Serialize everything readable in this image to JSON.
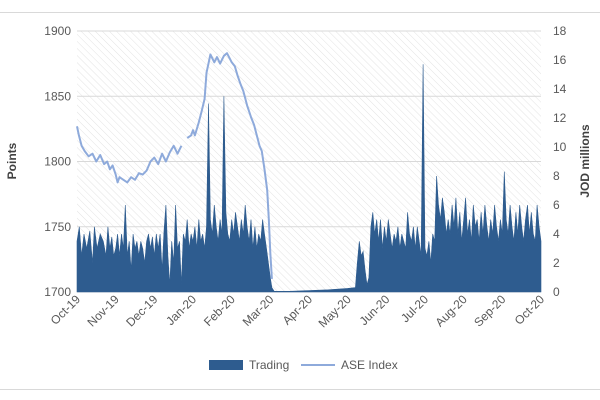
{
  "chart_data": {
    "type": "area",
    "title": "",
    "ylabel_left": "Points",
    "ylabel_right": "JOD millions",
    "left_axis": {
      "min": 1700,
      "max": 1900,
      "ticks": [
        "1700",
        "1750",
        "1800",
        "1850",
        "1900"
      ]
    },
    "right_axis": {
      "min": 0,
      "max": 18,
      "ticks": [
        "0",
        "2",
        "4",
        "6",
        "8",
        "10",
        "12",
        "14",
        "16",
        "18"
      ]
    },
    "x_axis": {
      "ticks": [
        "Oct-19",
        "Nov-19",
        "Dec-19",
        "Jan-20",
        "Feb-20",
        "Mar-20",
        "Apr-20",
        "May-20",
        "Jun-20",
        "Jul-20",
        "Aug-20",
        "Sep-20",
        "Oct-20"
      ]
    },
    "grid": "horizontal",
    "legend_position": "bottom",
    "series": [
      {
        "name": "Trading",
        "kind": "area",
        "axis": "right",
        "color": "#2e5c8f",
        "points": [
          [
            0.0,
            3.5
          ],
          [
            0.06,
            4.5
          ],
          [
            0.12,
            2.5
          ],
          [
            0.18,
            4.0
          ],
          [
            0.25,
            3.0
          ],
          [
            0.33,
            4.2
          ],
          [
            0.4,
            2.0
          ],
          [
            0.45,
            4.5
          ],
          [
            0.52,
            3.0
          ],
          [
            0.6,
            4.0
          ],
          [
            0.68,
            3.5
          ],
          [
            0.75,
            2.5
          ],
          [
            0.8,
            4.5
          ],
          [
            0.85,
            3.0
          ],
          [
            0.9,
            3.8
          ],
          [
            0.95,
            2.5
          ],
          [
            1.0,
            3.0
          ],
          [
            1.05,
            4.0
          ],
          [
            1.1,
            2.5
          ],
          [
            1.15,
            4.0
          ],
          [
            1.2,
            3.0
          ],
          [
            1.25,
            6.0
          ],
          [
            1.3,
            2.5
          ],
          [
            1.35,
            3.5
          ],
          [
            1.4,
            1.5
          ],
          [
            1.45,
            4.0
          ],
          [
            1.5,
            3.0
          ],
          [
            1.55,
            3.5
          ],
          [
            1.6,
            2.5
          ],
          [
            1.65,
            3.5
          ],
          [
            1.7,
            3.0
          ],
          [
            1.75,
            2.0
          ],
          [
            1.8,
            3.5
          ],
          [
            1.85,
            4.0
          ],
          [
            1.9,
            3.0
          ],
          [
            1.95,
            3.8
          ],
          [
            2.0,
            2.5
          ],
          [
            2.05,
            4.0
          ],
          [
            2.1,
            3.0
          ],
          [
            2.15,
            4.0
          ],
          [
            2.2,
            1.5
          ],
          [
            2.25,
            4.2
          ],
          [
            2.3,
            6.0
          ],
          [
            2.35,
            2.5
          ],
          [
            2.4,
            0.5
          ],
          [
            2.45,
            3.5
          ],
          [
            2.5,
            2.0
          ],
          [
            2.55,
            6.0
          ],
          [
            2.6,
            3.0
          ],
          [
            2.65,
            3.5
          ],
          [
            2.7,
            0.5
          ],
          [
            2.75,
            4.0
          ],
          [
            2.8,
            3.5
          ],
          [
            2.85,
            5.0
          ],
          [
            2.9,
            3.0
          ],
          [
            2.95,
            4.0
          ],
          [
            3.0,
            3.5
          ],
          [
            3.05,
            4.5
          ],
          [
            3.1,
            3.0
          ],
          [
            3.15,
            5.0
          ],
          [
            3.2,
            3.5
          ],
          [
            3.25,
            4.0
          ],
          [
            3.3,
            3.0
          ],
          [
            3.35,
            4.5
          ],
          [
            3.4,
            13.0
          ],
          [
            3.45,
            5.0
          ],
          [
            3.5,
            4.0
          ],
          [
            3.55,
            6.0
          ],
          [
            3.6,
            4.5
          ],
          [
            3.65,
            3.5
          ],
          [
            3.7,
            5.0
          ],
          [
            3.75,
            4.0
          ],
          [
            3.8,
            13.5
          ],
          [
            3.85,
            5.5
          ],
          [
            3.9,
            4.0
          ],
          [
            3.95,
            3.5
          ],
          [
            4.0,
            5.0
          ],
          [
            4.05,
            4.0
          ],
          [
            4.1,
            5.5
          ],
          [
            4.15,
            4.5
          ],
          [
            4.2,
            3.5
          ],
          [
            4.25,
            5.0
          ],
          [
            4.3,
            4.0
          ],
          [
            4.35,
            6.0
          ],
          [
            4.4,
            4.5
          ],
          [
            4.45,
            3.5
          ],
          [
            4.5,
            5.0
          ],
          [
            4.55,
            3.0
          ],
          [
            4.6,
            4.5
          ],
          [
            4.65,
            3.0
          ],
          [
            4.7,
            4.0
          ],
          [
            4.75,
            3.5
          ],
          [
            4.8,
            5.0
          ],
          [
            4.85,
            4.0
          ],
          [
            4.9,
            3.0
          ],
          [
            4.95,
            2.0
          ],
          [
            5.0,
            1.0
          ],
          [
            5.04,
            0.3
          ],
          [
            5.1,
            0.05
          ],
          [
            5.5,
            0.05
          ],
          [
            6.0,
            0.1
          ],
          [
            6.5,
            0.15
          ],
          [
            7.0,
            0.25
          ],
          [
            7.2,
            0.3
          ],
          [
            7.25,
            2.0
          ],
          [
            7.3,
            3.5
          ],
          [
            7.35,
            2.5
          ],
          [
            7.4,
            2.8
          ],
          [
            7.45,
            1.5
          ],
          [
            7.5,
            0.5
          ],
          [
            7.55,
            1.0
          ],
          [
            7.6,
            4.5
          ],
          [
            7.65,
            5.5
          ],
          [
            7.7,
            4.0
          ],
          [
            7.75,
            5.0
          ],
          [
            7.8,
            3.5
          ],
          [
            7.85,
            5.0
          ],
          [
            7.9,
            3.0
          ],
          [
            7.95,
            4.5
          ],
          [
            8.0,
            3.5
          ],
          [
            8.05,
            5.0
          ],
          [
            8.1,
            4.0
          ],
          [
            8.15,
            3.0
          ],
          [
            8.2,
            4.0
          ],
          [
            8.25,
            3.5
          ],
          [
            8.3,
            4.5
          ],
          [
            8.35,
            3.0
          ],
          [
            8.4,
            4.0
          ],
          [
            8.45,
            3.5
          ],
          [
            8.5,
            3.0
          ],
          [
            8.55,
            5.5
          ],
          [
            8.6,
            4.0
          ],
          [
            8.65,
            3.5
          ],
          [
            8.7,
            4.5
          ],
          [
            8.75,
            3.0
          ],
          [
            8.8,
            4.5
          ],
          [
            8.85,
            3.5
          ],
          [
            8.9,
            2.5
          ],
          [
            8.95,
            15.7
          ],
          [
            9.0,
            3.0
          ],
          [
            9.05,
            2.5
          ],
          [
            9.1,
            3.5
          ],
          [
            9.15,
            2.0
          ],
          [
            9.2,
            4.0
          ],
          [
            9.25,
            3.5
          ],
          [
            9.3,
            8.0
          ],
          [
            9.35,
            6.0
          ],
          [
            9.4,
            5.0
          ],
          [
            9.45,
            6.5
          ],
          [
            9.5,
            5.5
          ],
          [
            9.55,
            4.0
          ],
          [
            9.6,
            5.0
          ],
          [
            9.65,
            4.0
          ],
          [
            9.7,
            6.0
          ],
          [
            9.75,
            4.5
          ],
          [
            9.8,
            6.5
          ],
          [
            9.85,
            4.0
          ],
          [
            9.9,
            5.5
          ],
          [
            9.95,
            3.5
          ],
          [
            10.0,
            5.0
          ],
          [
            10.05,
            6.5
          ],
          [
            10.1,
            4.0
          ],
          [
            10.15,
            5.0
          ],
          [
            10.2,
            3.5
          ],
          [
            10.25,
            6.0
          ],
          [
            10.3,
            4.5
          ],
          [
            10.35,
            5.0
          ],
          [
            10.4,
            3.5
          ],
          [
            10.45,
            5.5
          ],
          [
            10.5,
            4.0
          ],
          [
            10.55,
            6.0
          ],
          [
            10.6,
            4.5
          ],
          [
            10.65,
            3.5
          ],
          [
            10.7,
            5.0
          ],
          [
            10.75,
            4.0
          ],
          [
            10.8,
            6.0
          ],
          [
            10.85,
            4.5
          ],
          [
            10.9,
            3.5
          ],
          [
            10.95,
            5.0
          ],
          [
            11.0,
            4.0
          ],
          [
            11.05,
            8.3
          ],
          [
            11.1,
            5.0
          ],
          [
            11.15,
            4.0
          ],
          [
            11.2,
            6.0
          ],
          [
            11.25,
            4.5
          ],
          [
            11.3,
            3.5
          ],
          [
            11.35,
            5.5
          ],
          [
            11.4,
            4.0
          ],
          [
            11.45,
            6.0
          ],
          [
            11.5,
            4.5
          ],
          [
            11.55,
            3.5
          ],
          [
            11.6,
            5.0
          ],
          [
            11.65,
            6.0
          ],
          [
            11.7,
            4.0
          ],
          [
            11.75,
            5.5
          ],
          [
            11.8,
            4.0
          ],
          [
            11.85,
            3.5
          ],
          [
            11.9,
            6.0
          ],
          [
            11.95,
            4.5
          ],
          [
            12.0,
            3.5
          ]
        ]
      },
      {
        "name": "ASE Index",
        "kind": "line",
        "axis": "left",
        "color": "#8eaadb",
        "segments": [
          [
            [
              0.0,
              1827
            ],
            [
              0.05,
              1820
            ],
            [
              0.12,
              1812
            ],
            [
              0.2,
              1808
            ],
            [
              0.3,
              1804
            ],
            [
              0.4,
              1806
            ],
            [
              0.5,
              1800
            ],
            [
              0.6,
              1805
            ],
            [
              0.7,
              1798
            ],
            [
              0.78,
              1800
            ],
            [
              0.85,
              1794
            ],
            [
              0.92,
              1797
            ],
            [
              1.0,
              1790
            ],
            [
              1.05,
              1784
            ],
            [
              1.1,
              1788
            ],
            [
              1.2,
              1786
            ],
            [
              1.3,
              1784
            ],
            [
              1.4,
              1788
            ],
            [
              1.5,
              1786
            ],
            [
              1.6,
              1791
            ],
            [
              1.7,
              1790
            ],
            [
              1.8,
              1793
            ],
            [
              1.9,
              1800
            ],
            [
              2.0,
              1803
            ],
            [
              2.1,
              1798
            ],
            [
              2.2,
              1806
            ],
            [
              2.3,
              1800
            ],
            [
              2.4,
              1807
            ],
            [
              2.5,
              1812
            ],
            [
              2.6,
              1806
            ],
            [
              2.7,
              1812
            ]
          ],
          [
            [
              2.85,
              1818
            ],
            [
              2.95,
              1820
            ],
            [
              3.0,
              1824
            ],
            [
              3.05,
              1820
            ],
            [
              3.15,
              1830
            ],
            [
              3.22,
              1838
            ],
            [
              3.3,
              1848
            ],
            [
              3.35,
              1868
            ],
            [
              3.45,
              1882
            ],
            [
              3.55,
              1876
            ],
            [
              3.62,
              1880
            ],
            [
              3.7,
              1875
            ],
            [
              3.8,
              1881
            ],
            [
              3.88,
              1883
            ],
            [
              3.93,
              1880
            ],
            [
              4.0,
              1876
            ],
            [
              4.08,
              1873
            ],
            [
              4.15,
              1866
            ],
            [
              4.22,
              1860
            ],
            [
              4.3,
              1854
            ],
            [
              4.4,
              1843
            ],
            [
              4.5,
              1834
            ],
            [
              4.58,
              1828
            ],
            [
              4.65,
              1820
            ],
            [
              4.72,
              1812
            ],
            [
              4.78,
              1808
            ],
            [
              4.85,
              1794
            ],
            [
              4.92,
              1778
            ],
            [
              4.96,
              1756
            ],
            [
              5.0,
              1730
            ],
            [
              5.04,
              1710
            ]
          ]
        ]
      }
    ]
  },
  "legend": [
    {
      "label": "Trading",
      "kind": "area",
      "color": "#2e5c8f"
    },
    {
      "label": "ASE Index",
      "kind": "line",
      "color": "#8eaadb"
    }
  ]
}
